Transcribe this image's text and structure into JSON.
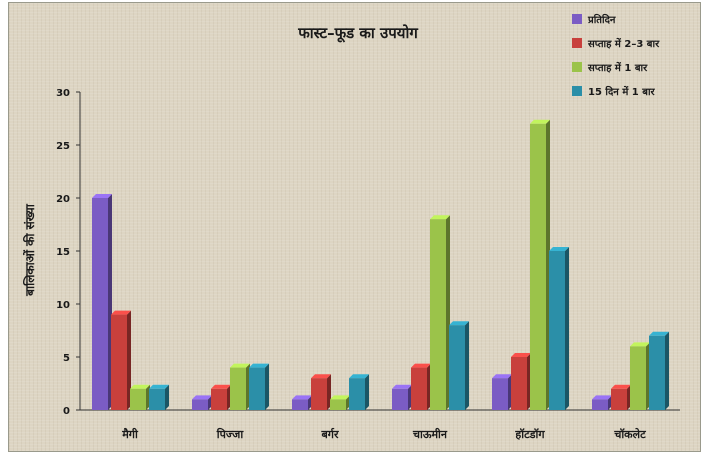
{
  "chart_data": {
    "type": "bar",
    "title": "फास्ट–फूड का उपयोग",
    "ylabel": "बालिकाओं की संख्या",
    "xlabel": "",
    "ylim": [
      0,
      30
    ],
    "yticks": [
      0,
      5,
      10,
      15,
      20,
      25,
      30
    ],
    "categories": [
      "मैगी",
      "पिज्जा",
      "बर्गर",
      "चाऊमीन",
      "हॉटडॉग",
      "चॉकलेट"
    ],
    "series": [
      {
        "name": "प्रतिदिन",
        "color": "#7b5cc4",
        "values": [
          20,
          1,
          1,
          2,
          3,
          1
        ]
      },
      {
        "name": "सप्ताह में 2–3 बार",
        "color": "#c8403c",
        "values": [
          9,
          2,
          3,
          4,
          5,
          2
        ]
      },
      {
        "name": "सप्ताह में 1 बार",
        "color": "#9bc34a",
        "values": [
          2,
          4,
          1,
          18,
          27,
          6
        ]
      },
      {
        "name": "15 दिन में 1 बार",
        "color": "#2b8fa8",
        "values": [
          2,
          4,
          3,
          8,
          15,
          7
        ]
      }
    ],
    "grid": false,
    "legend_position": "top-right",
    "bar_style": "3d"
  }
}
